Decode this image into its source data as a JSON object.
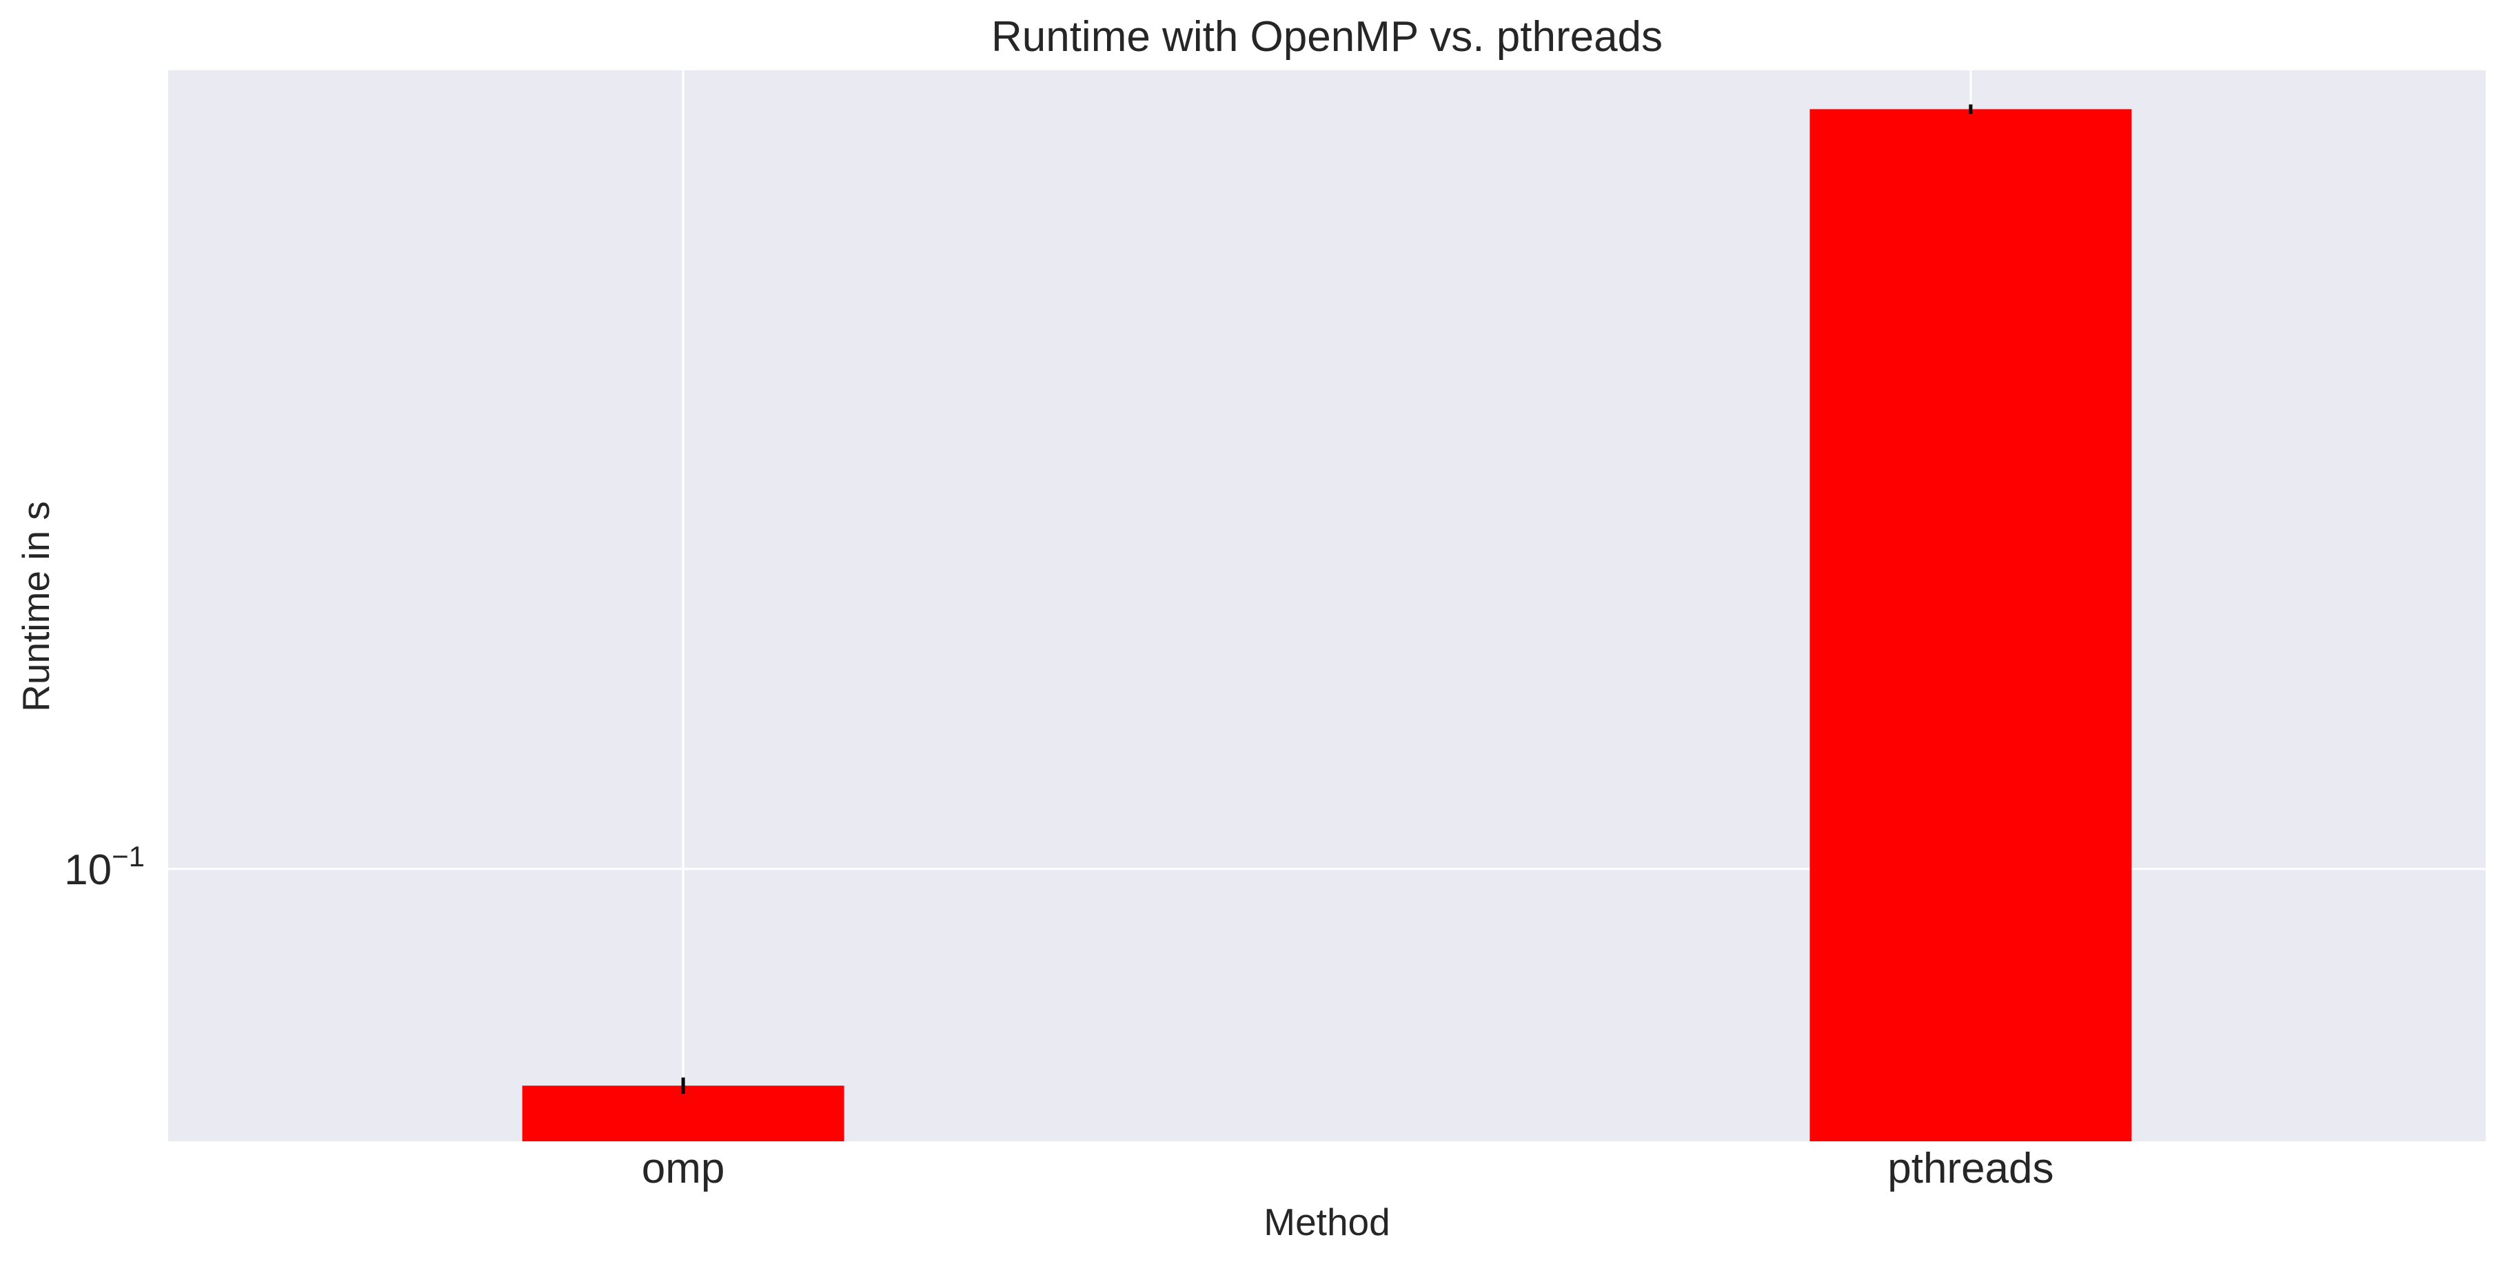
{
  "chart_data": {
    "type": "bar",
    "title": "Runtime with OpenMP vs. pthreads",
    "xlabel": "Method",
    "ylabel": "Runtime in s",
    "categories": [
      "omp",
      "pthreads"
    ],
    "values": [
      0.077,
      0.25
    ],
    "error_bars": [
      0.0005,
      0.0006
    ],
    "yscale": "log",
    "ylim": [
      0.072,
      0.262
    ],
    "y_ticks": [
      {
        "value": 0.1,
        "label": "10",
        "exponent": "−1"
      }
    ],
    "grid": true,
    "legend": "none",
    "colors": {
      "bar": "#ff0000",
      "error_bar": "#000000",
      "plot_background": "#eaeaf2",
      "grid": "#ffffff",
      "text": "#262626"
    }
  }
}
